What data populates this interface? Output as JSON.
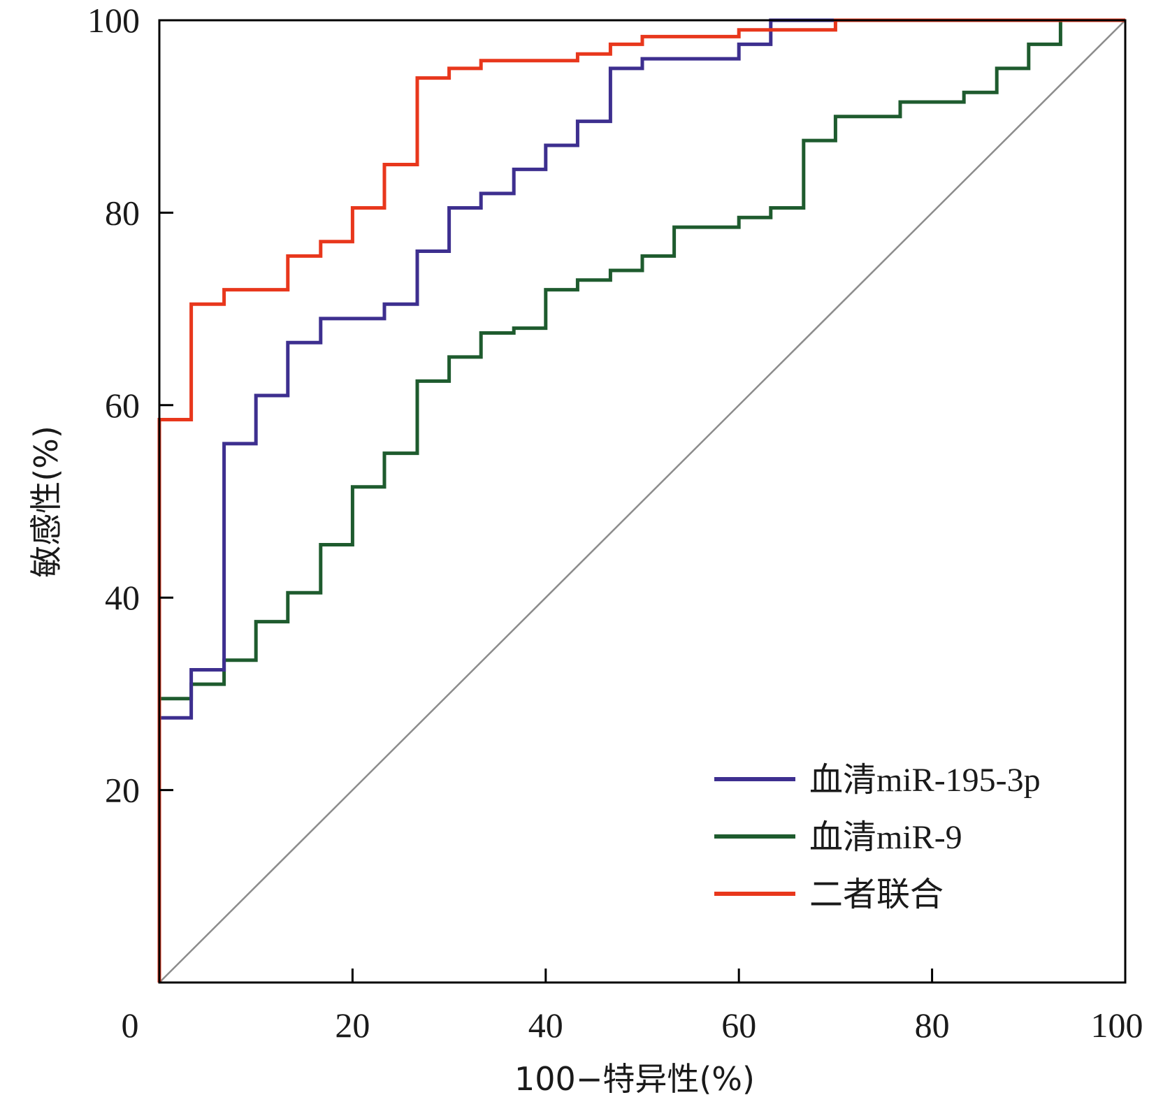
{
  "chart_data": {
    "type": "line",
    "subtype": "roc-step",
    "xlabel": "100−特异性(%)",
    "ylabel": "敏感性(%)",
    "xlim": [
      0,
      100
    ],
    "ylim": [
      0,
      100
    ],
    "x_ticks": [
      "0",
      "20",
      "40",
      "60",
      "80",
      "100"
    ],
    "y_ticks": [
      "20",
      "40",
      "60",
      "80",
      "100"
    ],
    "y_tick_values": [
      20,
      40,
      60,
      80,
      100
    ],
    "x_tick_values": [
      0,
      20,
      40,
      60,
      80,
      100
    ],
    "grid": false,
    "legend_position": "bottom-right",
    "reference_line": {
      "name": "diagonal",
      "color": "#8c8c8c",
      "points": [
        [
          0,
          0
        ],
        [
          100,
          100
        ]
      ]
    },
    "series": [
      {
        "name": "血清miR-195-3p",
        "color": "#3d2f8f",
        "points": [
          [
            0,
            0
          ],
          [
            0,
            27.5
          ],
          [
            3.3,
            27.5
          ],
          [
            3.3,
            32.5
          ],
          [
            6.7,
            32.5
          ],
          [
            6.7,
            56
          ],
          [
            10,
            56
          ],
          [
            10,
            61
          ],
          [
            13.3,
            61
          ],
          [
            13.3,
            66.5
          ],
          [
            16.7,
            66.5
          ],
          [
            16.7,
            69
          ],
          [
            23.3,
            69
          ],
          [
            23.3,
            70.5
          ],
          [
            26.7,
            70.5
          ],
          [
            26.7,
            76
          ],
          [
            30,
            76
          ],
          [
            30,
            80.5
          ],
          [
            33.3,
            80.5
          ],
          [
            33.3,
            82
          ],
          [
            36.7,
            82
          ],
          [
            36.7,
            84.5
          ],
          [
            40,
            84.5
          ],
          [
            40,
            87
          ],
          [
            43.3,
            87
          ],
          [
            43.3,
            89.5
          ],
          [
            46.7,
            89.5
          ],
          [
            46.7,
            95
          ],
          [
            50,
            95
          ],
          [
            50,
            96
          ],
          [
            60,
            96
          ],
          [
            60,
            97.5
          ],
          [
            63.3,
            97.5
          ],
          [
            63.3,
            100
          ],
          [
            100,
            100
          ]
        ]
      },
      {
        "name": "血清miR-9",
        "color": "#1e5b2e",
        "points": [
          [
            0,
            0
          ],
          [
            0,
            29.5
          ],
          [
            3.3,
            29.5
          ],
          [
            3.3,
            31
          ],
          [
            6.7,
            31
          ],
          [
            6.7,
            33.5
          ],
          [
            10,
            33.5
          ],
          [
            10,
            37.5
          ],
          [
            13.3,
            37.5
          ],
          [
            13.3,
            40.5
          ],
          [
            16.7,
            40.5
          ],
          [
            16.7,
            45.5
          ],
          [
            20,
            45.5
          ],
          [
            20,
            51.5
          ],
          [
            23.3,
            51.5
          ],
          [
            23.3,
            55
          ],
          [
            26.7,
            55
          ],
          [
            26.7,
            62.5
          ],
          [
            30,
            62.5
          ],
          [
            30,
            65
          ],
          [
            33.3,
            65
          ],
          [
            33.3,
            67.5
          ],
          [
            36.7,
            67.5
          ],
          [
            36.7,
            68
          ],
          [
            40,
            68
          ],
          [
            40,
            72
          ],
          [
            43.3,
            72
          ],
          [
            43.3,
            73
          ],
          [
            46.7,
            73
          ],
          [
            46.7,
            74
          ],
          [
            50,
            74
          ],
          [
            50,
            75.5
          ],
          [
            53.3,
            75.5
          ],
          [
            53.3,
            78.5
          ],
          [
            60,
            78.5
          ],
          [
            60,
            79.5
          ],
          [
            63.3,
            79.5
          ],
          [
            63.3,
            80.5
          ],
          [
            66.7,
            80.5
          ],
          [
            66.7,
            87.5
          ],
          [
            70,
            87.5
          ],
          [
            70,
            90
          ],
          [
            76.7,
            90
          ],
          [
            76.7,
            91.5
          ],
          [
            83.3,
            91.5
          ],
          [
            83.3,
            92.5
          ],
          [
            86.7,
            92.5
          ],
          [
            86.7,
            95
          ],
          [
            90,
            95
          ],
          [
            90,
            97.5
          ],
          [
            93.3,
            97.5
          ],
          [
            93.3,
            100
          ],
          [
            100,
            100
          ]
        ]
      },
      {
        "name": "二者联合",
        "color": "#e8371c",
        "points": [
          [
            0,
            0
          ],
          [
            0,
            58.5
          ],
          [
            3.3,
            58.5
          ],
          [
            3.3,
            70.5
          ],
          [
            6.7,
            70.5
          ],
          [
            6.7,
            72
          ],
          [
            13.3,
            72
          ],
          [
            13.3,
            75.5
          ],
          [
            16.7,
            75.5
          ],
          [
            16.7,
            77
          ],
          [
            20,
            77
          ],
          [
            20,
            80.5
          ],
          [
            23.3,
            80.5
          ],
          [
            23.3,
            85
          ],
          [
            26.7,
            85
          ],
          [
            26.7,
            94
          ],
          [
            30,
            94
          ],
          [
            30,
            95
          ],
          [
            33.3,
            95
          ],
          [
            33.3,
            95.8
          ],
          [
            43.3,
            95.8
          ],
          [
            43.3,
            96.5
          ],
          [
            46.7,
            96.5
          ],
          [
            46.7,
            97.5
          ],
          [
            50,
            97.5
          ],
          [
            50,
            98.3
          ],
          [
            60,
            98.3
          ],
          [
            60,
            99
          ],
          [
            70,
            99
          ],
          [
            70,
            100
          ],
          [
            100,
            100
          ]
        ]
      }
    ]
  }
}
